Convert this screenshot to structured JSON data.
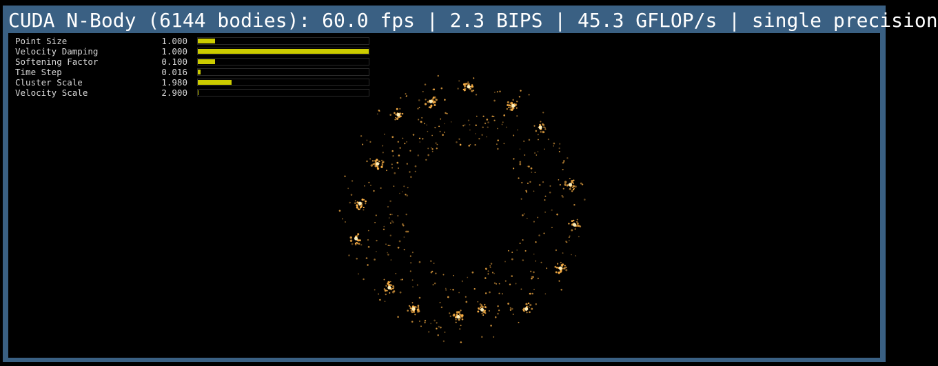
{
  "window": {
    "title": "CUDA N-Body (6144 bodies): 60.0 fps | 2.3 BIPS | 45.3 GFLOP/s | single precision"
  },
  "params": [
    {
      "label": "Point Size",
      "value": "1.000",
      "fill": 0.1
    },
    {
      "label": "Velocity Damping",
      "value": "1.000",
      "fill": 1.0
    },
    {
      "label": "Softening Factor",
      "value": "0.100",
      "fill": 0.1
    },
    {
      "label": "Time Step",
      "value": "0.016",
      "fill": 0.016
    },
    {
      "label": "Cluster Scale",
      "value": "1.980",
      "fill": 0.198
    },
    {
      "label": "Velocity Scale",
      "value": "2.900",
      "fill": 0.0029
    }
  ],
  "colors": {
    "window_frame": "#3a6083",
    "slider_fill": "#cccc00",
    "particle": "#ffb347",
    "particle_core": "#fff2c0"
  }
}
